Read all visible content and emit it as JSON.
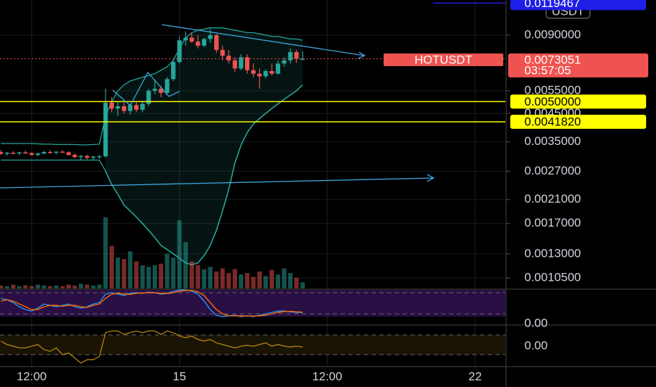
{
  "chart_data": {
    "type": "candlestick",
    "symbol_label": "HOTUSDT",
    "currency": "USDT",
    "countdown": "03:57:05",
    "last_price": 0.0073051,
    "x": [
      -2.5,
      -2,
      -1.5,
      -1,
      -0.5,
      0,
      0.5,
      1,
      1.5,
      2,
      2.5,
      3,
      3.5,
      4,
      4.5,
      5,
      5.5,
      6,
      6.5,
      7,
      7.5,
      8,
      8.5,
      9,
      9.5,
      10,
      10.5,
      11,
      11.5,
      12,
      12.5,
      13,
      13.5,
      14,
      14.5,
      15,
      15.5,
      16,
      16.5,
      17,
      17.5,
      18,
      18.5,
      19,
      19.5,
      20,
      20.5,
      21,
      21.5,
      22
    ],
    "xlim": [
      -2.57,
      38.46
    ],
    "xticks": [
      {
        "value": 0,
        "label": "12:00"
      },
      {
        "value": 12,
        "label": "15"
      },
      {
        "value": 24,
        "label": "12:00"
      },
      {
        "value": 36,
        "label": "22"
      }
    ],
    "open": [
      0.0032,
      0.00315,
      0.00318,
      0.00316,
      0.00319,
      0.00317,
      0.00312,
      0.00316,
      0.0032,
      0.00318,
      0.00321,
      0.00319,
      0.00312,
      0.00306,
      0.00309,
      0.00304,
      0.00307,
      0.00308,
      0.00495,
      0.0047,
      0.0048,
      0.0046,
      0.00485,
      0.00465,
      0.0049,
      0.0055,
      0.0056,
      0.0054,
      0.0061,
      0.0071,
      0.0086,
      0.0088,
      0.0085,
      0.0082,
      0.0087,
      0.009,
      0.0079,
      0.0075,
      0.0072,
      0.0067,
      0.0074,
      0.0066,
      0.0064,
      0.00625,
      0.00655,
      0.0064,
      0.007,
      0.0072,
      0.00775,
      0.0073
    ],
    "high": [
      0.00325,
      0.0032,
      0.00322,
      0.00321,
      0.00324,
      0.0032,
      0.00318,
      0.00323,
      0.00326,
      0.00322,
      0.00325,
      0.00322,
      0.00316,
      0.00312,
      0.00313,
      0.0031,
      0.00312,
      0.0056,
      0.0052,
      0.005,
      0.00495,
      0.0049,
      0.005,
      0.005,
      0.0056,
      0.006,
      0.00575,
      0.0062,
      0.0072,
      0.0089,
      0.0093,
      0.0092,
      0.009,
      0.0088,
      0.0095,
      0.0091,
      0.0082,
      0.0079,
      0.0074,
      0.0076,
      0.0076,
      0.007,
      0.0067,
      0.00665,
      0.007,
      0.0072,
      0.0074,
      0.008,
      0.0079,
      0.0078
    ],
    "low": [
      0.00312,
      0.0031,
      0.00314,
      0.00311,
      0.00315,
      0.0031,
      0.00308,
      0.00313,
      0.00316,
      0.00313,
      0.00317,
      0.0031,
      0.00303,
      0.00298,
      0.003,
      0.00299,
      0.00302,
      0.00305,
      0.00455,
      0.0044,
      0.0045,
      0.00445,
      0.00455,
      0.00455,
      0.0048,
      0.00535,
      0.0052,
      0.0053,
      0.006,
      0.007,
      0.0082,
      0.0084,
      0.008,
      0.0081,
      0.0084,
      0.0077,
      0.0072,
      0.007,
      0.0065,
      0.0066,
      0.0064,
      0.0062,
      0.0056,
      0.00615,
      0.0063,
      0.00635,
      0.0068,
      0.007,
      0.00705,
      0.0072
    ],
    "close": [
      0.00315,
      0.00318,
      0.00316,
      0.00319,
      0.00317,
      0.00312,
      0.00316,
      0.0032,
      0.00318,
      0.00321,
      0.00319,
      0.00312,
      0.00306,
      0.00309,
      0.00304,
      0.00307,
      0.00308,
      0.00495,
      0.0047,
      0.0048,
      0.0046,
      0.00485,
      0.00465,
      0.0049,
      0.0055,
      0.0056,
      0.0054,
      0.0061,
      0.0071,
      0.0086,
      0.0088,
      0.0085,
      0.0082,
      0.0087,
      0.009,
      0.0079,
      0.0075,
      0.0072,
      0.0067,
      0.0074,
      0.0066,
      0.0064,
      0.00625,
      0.00655,
      0.0064,
      0.007,
      0.0072,
      0.00775,
      0.0073,
      0.0073051
    ],
    "up_color": "#26a69a",
    "down_color": "#ef5350",
    "ylim": [
      0.000957,
      0.01228
    ],
    "log_scale": true,
    "yticks": [
      {
        "value": 0.009,
        "label": "0.0090000"
      },
      {
        "value": 0.0055,
        "label": "0.0055000"
      },
      {
        "value": 0.0045,
        "label": "0.0045000"
      },
      {
        "value": 0.0035,
        "label": "0.0035000"
      },
      {
        "value": 0.0027,
        "label": "0.0027000"
      },
      {
        "value": 0.0021,
        "label": "0.0021000"
      },
      {
        "value": 0.0017,
        "label": "0.0017000"
      },
      {
        "value": 0.0013,
        "label": "0.0013000"
      },
      {
        "value": 0.00105,
        "label": "0.0010500"
      }
    ],
    "hlines": [
      {
        "value": 0.005,
        "label": "0.0050000",
        "color": "#ffff00"
      },
      {
        "value": 0.004182,
        "label": "0.0041820",
        "color": "#ffff00"
      },
      {
        "value": 0.0119467,
        "label": "0.0119467",
        "color": "#1e1ee6"
      }
    ],
    "bands": {
      "color": "#26a69a",
      "start": 17,
      "upper": [
        0.00345,
        0.00345,
        0.00345,
        0.00345,
        0.00345,
        0.00345,
        0.00344,
        0.00343,
        0.00343,
        0.00342,
        0.00342,
        0.00342,
        0.00342,
        0.00341,
        0.00341,
        0.00342,
        0.00343,
        0.0044,
        0.005,
        0.0055,
        0.0058,
        0.006,
        0.0061,
        0.0062,
        0.0063,
        0.0064,
        0.0066,
        0.0068,
        0.0072,
        0.008,
        0.0088,
        0.0092,
        0.0094,
        0.0095,
        0.0096,
        0.0096,
        0.0096,
        0.0095,
        0.0094,
        0.0093,
        0.0092,
        0.0092,
        0.0091,
        0.009,
        0.0089,
        0.0089,
        0.0088,
        0.0087,
        0.0087,
        0.0086
      ],
      "lower": [
        0.00298,
        0.00298,
        0.00298,
        0.00298,
        0.00298,
        0.00298,
        0.00298,
        0.00298,
        0.00298,
        0.00298,
        0.00298,
        0.00298,
        0.00298,
        0.00298,
        0.00298,
        0.00298,
        0.00298,
        0.0027,
        0.0024,
        0.0022,
        0.002,
        0.0019,
        0.0018,
        0.0017,
        0.0016,
        0.0015,
        0.0014,
        0.00135,
        0.0013,
        0.00125,
        0.0012,
        0.00118,
        0.0012,
        0.00128,
        0.0014,
        0.0016,
        0.0019,
        0.0023,
        0.0029,
        0.0034,
        0.0038,
        0.0041,
        0.0043,
        0.0045,
        0.0047,
        0.0049,
        0.0051,
        0.0053,
        0.0055,
        0.0058
      ]
    },
    "volume": [
      4,
      3,
      5,
      3,
      4,
      3,
      5,
      4,
      3,
      4,
      3,
      5,
      4,
      6,
      5,
      4,
      5,
      92,
      55,
      40,
      38,
      48,
      35,
      30,
      28,
      30,
      32,
      45,
      40,
      88,
      60,
      35,
      30,
      25,
      28,
      22,
      26,
      20,
      25,
      18,
      20,
      15,
      22,
      16,
      24,
      18,
      26,
      20,
      14,
      8
    ],
    "volume_lim": [
      0,
      100
    ],
    "stoch": {
      "ylim": [
        0,
        100
      ],
      "axis_label": "0.00",
      "series": [
        {
          "color": "#2196f3",
          "values": [
            70,
            65,
            55,
            40,
            30,
            25,
            35,
            50,
            45,
            40,
            45,
            50,
            40,
            35,
            40,
            50,
            55,
            85,
            90,
            85,
            80,
            88,
            90,
            88,
            92,
            90,
            85,
            88,
            95,
            100,
            100,
            95,
            85,
            60,
            30,
            10,
            5,
            8,
            10,
            5,
            8,
            5,
            10,
            15,
            20,
            25,
            25,
            22,
            20,
            20
          ]
        },
        {
          "color": "#ff6d00",
          "values": [
            60,
            65,
            60,
            50,
            40,
            30,
            30,
            40,
            45,
            45,
            42,
            45,
            45,
            40,
            38,
            45,
            50,
            70,
            85,
            88,
            85,
            84,
            88,
            89,
            90,
            90,
            88,
            87,
            90,
            95,
            98,
            98,
            93,
            80,
            55,
            30,
            15,
            8,
            8,
            8,
            7,
            7,
            8,
            10,
            15,
            20,
            23,
            24,
            22,
            21
          ]
        }
      ]
    },
    "oscillator": {
      "ylim": [
        -1,
        1
      ],
      "axis_label": "0.00",
      "color": "#b8860b",
      "values": [
        0.3,
        0.1,
        0,
        -0.1,
        -0.1,
        0,
        0.1,
        -0.2,
        -0.3,
        -0.1,
        -0.5,
        -0.4,
        -0.7,
        -1.0,
        -0.8,
        -0.8,
        -0.6,
        0.8,
        0.9,
        0.9,
        0.7,
        0.8,
        0.9,
        0.8,
        0.9,
        0.9,
        0.7,
        0.9,
        0.8,
        0.6,
        0.5,
        0.6,
        0.4,
        0.3,
        0.4,
        0.2,
        0.1,
        0.0,
        -0.1,
        0,
        0.05,
        0.0,
        0.1,
        0.2,
        0.0,
        0.1,
        0.0,
        -0.05,
        0.0,
        -0.05
      ]
    }
  }
}
